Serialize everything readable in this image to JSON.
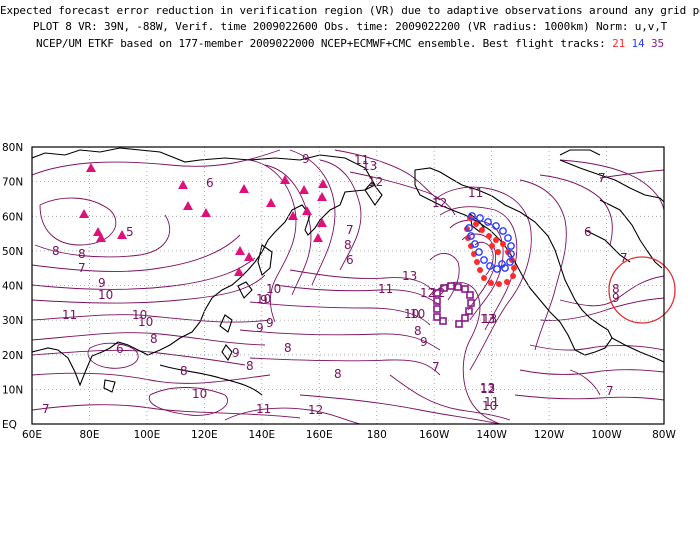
{
  "header": {
    "line1": "Expected forecast error reduction in verification region (VR) due to adaptive observations around any grid point.",
    "line2": "PLOT 8 VR: 39N, -88W, Verif. time 2009022600 Obs. time: 2009022200 (VR radius: 1000km) Norm: u,v,T",
    "line3_prefix": "NCEP/UM ETKF based on 177-member 2009022000 NCEP+ECMWF+CMC ensemble. Best flight tracks: ",
    "track_a": "21",
    "track_b": "14",
    "track_c": "35"
  },
  "map": {
    "lat_labels": [
      "80N",
      "70N",
      "60N",
      "50N",
      "40N",
      "30N",
      "20N",
      "10N",
      "EQ"
    ],
    "lon_labels": [
      "60E",
      "80E",
      "100E",
      "120E",
      "140E",
      "160E",
      "180",
      "160W",
      "140W",
      "120W",
      "100W",
      "80W"
    ],
    "contour_labels": [
      "7",
      "6",
      "8",
      "8",
      "9",
      "9",
      "10",
      "11",
      "11",
      "10",
      "10",
      "9",
      "8",
      "6",
      "5",
      "7",
      "8",
      "9",
      "10",
      "10",
      "11",
      "12",
      "13",
      "13",
      "12",
      "11",
      "11",
      "12",
      "13",
      "12",
      "11",
      "10",
      "9",
      "8",
      "7",
      "6",
      "7",
      "8",
      "8",
      "9",
      "9",
      "10",
      "10",
      "12",
      "13",
      "13",
      "12",
      "10",
      "9",
      "8",
      "8",
      "7",
      "7",
      "6",
      "7",
      "8"
    ],
    "colors": {
      "contour": "#7a1060",
      "land": "#000000",
      "grid": "#9a9a9a",
      "triangle": "#e0107a",
      "track_21": "#ff2a2a",
      "track_14": "#2a3cff",
      "track_35": "#8a1a8a",
      "verification_circle": "#e03030"
    }
  }
}
